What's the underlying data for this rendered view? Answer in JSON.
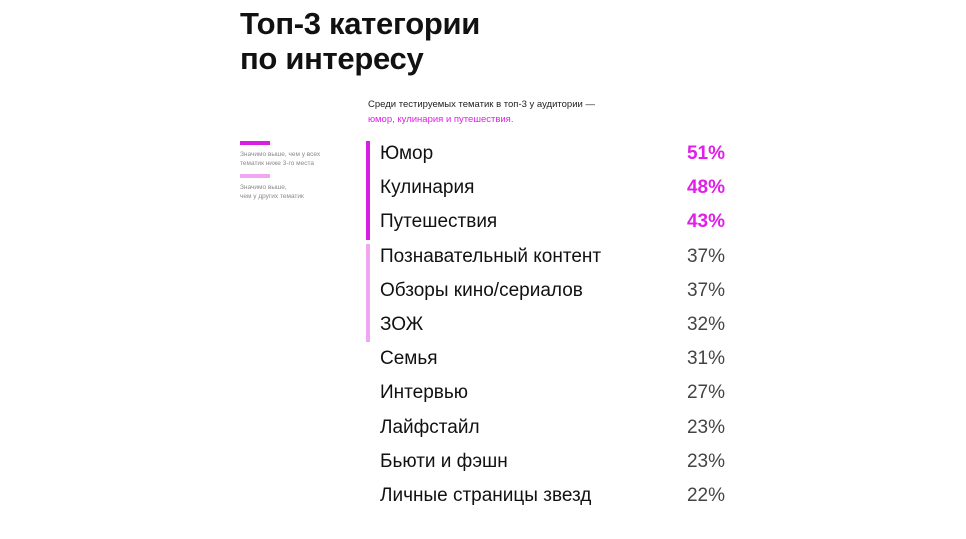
{
  "title_lines": [
    "Топ-3 категории",
    "по интересу"
  ],
  "subtitle": {
    "line1": "Среди тестируемых тематик в топ-3 у аудитории —",
    "line2": "юмор, кулинария и путешествия."
  },
  "legend": [
    {
      "color": "#d81ee0",
      "lines": [
        "Значимо выше, чем у всех",
        "тематик ниже 3-го места"
      ]
    },
    {
      "color": "#f2a6f2",
      "lines": [
        "Значимо выше,",
        "чем у других тематик"
      ]
    }
  ],
  "colors": {
    "strong": "#d81ee0",
    "light": "#f2a6f2",
    "accent_text": "#e020e8"
  },
  "chart_data": {
    "type": "table",
    "unit": "%",
    "categories": [
      "Юмор",
      "Кулинария",
      "Путешествия",
      "Познавательный контент",
      "Обзоры кино/сериалов",
      "ЗОЖ",
      "Семья",
      "Интервью",
      "Лайфстайл",
      "Бьюти и фэшн",
      "Личные страницы звезд"
    ],
    "values": [
      51,
      48,
      43,
      37,
      37,
      32,
      31,
      27,
      23,
      23,
      22
    ],
    "value_labels": [
      "51%",
      "48%",
      "43%",
      "37%",
      "37%",
      "32%",
      "31%",
      "27%",
      "23%",
      "23%",
      "22%"
    ],
    "highlight": [
      "strong",
      "strong",
      "strong",
      "light",
      "light",
      "light",
      "none",
      "none",
      "none",
      "none",
      "none"
    ]
  }
}
